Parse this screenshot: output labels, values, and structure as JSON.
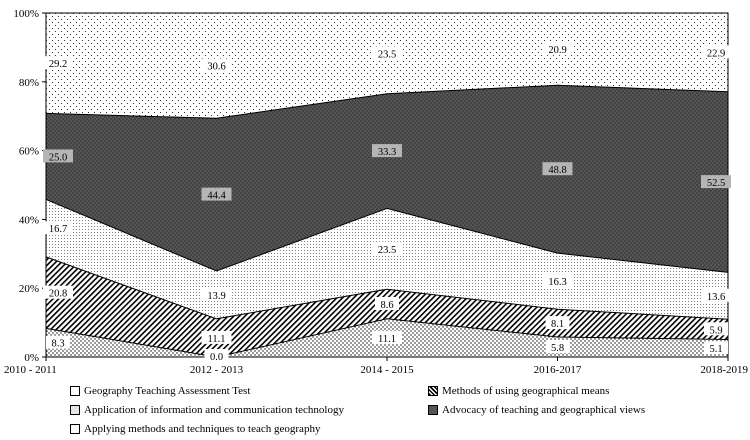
{
  "chart_data": {
    "type": "area",
    "stacked": true,
    "percent": true,
    "categories": [
      "2010 - 2011",
      "2012 - 2013",
      "2014 - 2015",
      "2016-2017",
      "2018-2019"
    ],
    "ylim": [
      0,
      100
    ],
    "yticks": [
      "0%",
      "20%",
      "40%",
      "60%",
      "80%",
      "100%"
    ],
    "grid": false,
    "legend_position": "bottom",
    "series": [
      {
        "name": "Geography Teaching Assessment Test",
        "values": [
          8.3,
          0.0,
          11.1,
          5.8,
          5.1
        ],
        "labels": [
          "8.3",
          "0.0",
          "11.1",
          "5.8",
          "5.1"
        ],
        "color": "#ffffff",
        "pattern": "small-dots"
      },
      {
        "name": "Methods of using geographical means",
        "values": [
          20.8,
          11.1,
          8.6,
          8.1,
          5.9
        ],
        "labels": [
          "20.8",
          "11.1",
          "8.6",
          "8.1",
          "5.9"
        ],
        "color": "#ffffff",
        "pattern": "diagonal-hatch"
      },
      {
        "name": "Application of information and communication technology",
        "values": [
          16.7,
          13.9,
          23.5,
          16.3,
          13.6
        ],
        "labels": [
          "16.7",
          "13.9",
          "23.5",
          "16.3",
          "13.6"
        ],
        "color": "#ffffff",
        "pattern": "fine-dots"
      },
      {
        "name": "Advocacy of teaching and geographical views",
        "values": [
          25.0,
          44.4,
          33.3,
          48.8,
          52.5
        ],
        "labels": [
          "25.0",
          "44.4",
          "33.3",
          "48.8",
          "52.5"
        ],
        "color": "#555555",
        "pattern": "dark-dots"
      },
      {
        "name": "Applying methods and techniques to teach geography",
        "values": [
          29.2,
          30.6,
          23.5,
          20.9,
          22.9
        ],
        "labels": [
          "29.2",
          "30.6",
          "23.5",
          "20.9",
          "22.9"
        ],
        "color": "#ffffff",
        "pattern": "sparse-dots"
      }
    ]
  }
}
